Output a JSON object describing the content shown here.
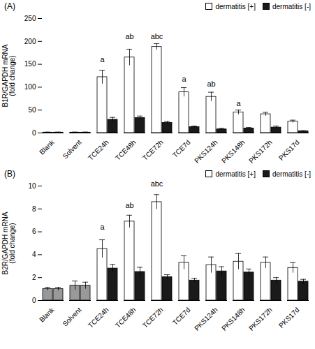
{
  "chart_data": [
    {
      "type": "bar",
      "title": "(A)",
      "categories": [
        "Blank",
        "Solvent",
        "TCE24h",
        "TCE48h",
        "TCE72h",
        "TCE7d",
        "PKS124h",
        "PKS148h",
        "PKS172h",
        "PKS17d"
      ],
      "series": [
        {
          "name": "dermatitis [+]",
          "color": "#ffffff",
          "values": [
            1,
            1,
            122,
            165,
            188,
            89,
            79,
            45,
            41,
            25
          ],
          "errors": [
            1,
            1,
            15,
            18,
            7,
            10,
            10,
            5,
            4,
            3
          ]
        },
        {
          "name": "dermatitis [-]",
          "color": "#1a1a1a",
          "values": [
            1,
            1,
            29,
            33,
            22,
            13,
            8,
            10,
            12,
            4
          ],
          "errors": [
            1,
            1,
            5,
            4,
            3,
            2,
            2,
            2,
            3,
            1
          ]
        }
      ],
      "ylim": [
        0,
        250
      ],
      "yticks": [
        0,
        50,
        100,
        150,
        200,
        250
      ],
      "ylabel": "B1R/GAPDH mRNA\n(fold change)",
      "annotations": [
        {
          "text": "a",
          "category": "TCE24h",
          "series": "dermatitis [+]",
          "y": 155
        },
        {
          "text": "ab",
          "category": "TCE48h",
          "series": "dermatitis [+]",
          "y": 205
        },
        {
          "text": "abc",
          "category": "TCE72h",
          "series": "dermatitis [+]",
          "y": 205
        },
        {
          "text": "a",
          "category": "TCE7d",
          "series": "dermatitis [+]",
          "y": 112
        },
        {
          "text": "ab",
          "category": "PKS124h",
          "series": "dermatitis [+]",
          "y": 102
        },
        {
          "text": "a",
          "category": "PKS148h",
          "series": "dermatitis [+]",
          "y": 58
        }
      ],
      "legend": "upper right"
    },
    {
      "type": "bar",
      "title": "(B)",
      "categories": [
        "Blank",
        "Solvent",
        "TCE24h",
        "TCE48h",
        "TCE72h",
        "TCE7d",
        "PKS124h",
        "PKS148h",
        "PKS172h",
        "PKS17d"
      ],
      "series": [
        {
          "name": "dermatitis [+]",
          "color": "#ffffff",
          "colors": [
            "#999999",
            "#999999",
            "#ffffff",
            "#ffffff",
            "#ffffff",
            "#ffffff",
            "#ffffff",
            "#ffffff",
            "#ffffff",
            "#ffffff"
          ],
          "values": [
            1.0,
            1.3,
            4.5,
            6.9,
            8.6,
            3.3,
            3.1,
            3.4,
            3.3,
            2.85
          ],
          "errors": [
            0.15,
            0.4,
            0.8,
            0.55,
            0.65,
            0.6,
            0.7,
            0.7,
            0.5,
            0.45
          ]
        },
        {
          "name": "dermatitis [-]",
          "color": "#1a1a1a",
          "colors": [
            "#999999",
            "#999999",
            "#1a1a1a",
            "#1a1a1a",
            "#1a1a1a",
            "#1a1a1a",
            "#1a1a1a",
            "#1a1a1a",
            "#1a1a1a",
            "#1a1a1a"
          ],
          "values": [
            1.0,
            1.3,
            2.8,
            2.5,
            2.05,
            1.75,
            2.55,
            2.45,
            1.75,
            1.65
          ],
          "errors": [
            0.15,
            0.3,
            0.35,
            0.4,
            0.2,
            0.2,
            0.4,
            0.3,
            0.25,
            0.2
          ]
        }
      ],
      "ylim": [
        0,
        10
      ],
      "yticks": [
        0,
        2,
        4,
        6,
        8,
        10
      ],
      "ylabel": "B2R/GAPDH mRNA\n(fold change)",
      "annotations": [
        {
          "text": "a",
          "category": "TCE24h",
          "series": "dermatitis [+]",
          "y": 6.2
        },
        {
          "text": "ab",
          "category": "TCE48h",
          "series": "dermatitis [+]",
          "y": 8.05
        },
        {
          "text": "abc",
          "category": "TCE72h",
          "series": "dermatitis [+]",
          "y": 9.95
        }
      ],
      "legend": "upper right"
    }
  ]
}
